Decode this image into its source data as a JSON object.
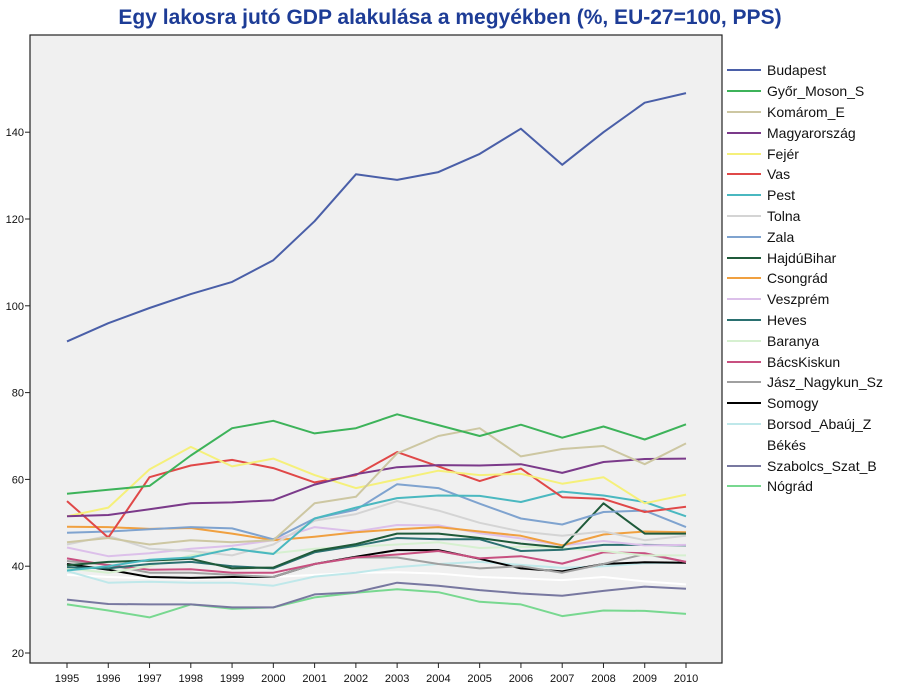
{
  "chart_data": {
    "type": "line",
    "title": "Egy lakosra jutó GDP alakulása a megyékben (%, EU-27=100, PPS)",
    "xlabel": "",
    "ylabel": "",
    "x": [
      1995,
      1996,
      1997,
      1998,
      1999,
      2000,
      2001,
      2002,
      2003,
      2004,
      2005,
      2006,
      2007,
      2008,
      2009,
      2010
    ],
    "ylim": [
      18,
      155
    ],
    "yticks": [
      20,
      40,
      60,
      80,
      100,
      120,
      140
    ],
    "grid": false,
    "legend_position": "right",
    "series": [
      {
        "name": "Budapest",
        "color": "#4a5fa8",
        "values": [
          91.8,
          96,
          99.5,
          102.7,
          105.5,
          110.5,
          119.5,
          130.3,
          129,
          130.8,
          135,
          140.8,
          132.5,
          140,
          146.8,
          149
        ]
      },
      {
        "name": "Győr_Moson_S",
        "color": "#3db35a",
        "values": [
          56.7,
          57.6,
          58.5,
          65.5,
          71.8,
          73.5,
          70.6,
          71.8,
          75,
          72.5,
          70,
          72.6,
          69.6,
          72.2,
          69.2,
          72.7
        ]
      },
      {
        "name": "Komárom_E",
        "color": "#cdc7a2",
        "values": [
          45.5,
          46.5,
          45,
          46,
          45.5,
          46,
          54.5,
          56,
          66,
          70,
          71.8,
          65.3,
          67,
          67.7,
          63.5,
          68.3
        ]
      },
      {
        "name": "Magyarország",
        "color": "#7b3a8a",
        "values": [
          51.5,
          51.8,
          53.1,
          54.5,
          54.7,
          55.2,
          58.8,
          61.2,
          62.8,
          63.3,
          63.2,
          63.5,
          61.5,
          64,
          64.7,
          64.8
        ]
      },
      {
        "name": "Fejér",
        "color": "#f5f07a",
        "values": [
          51.5,
          53.5,
          62.3,
          67.5,
          63,
          64.8,
          61,
          58,
          60,
          62,
          61,
          61.3,
          59,
          60.5,
          54.5,
          56.5
        ]
      },
      {
        "name": "Vas",
        "color": "#e04848",
        "values": [
          55,
          46.6,
          60.5,
          63.2,
          64.5,
          62.6,
          59.3,
          61,
          66.3,
          63,
          59.6,
          62.5,
          55.9,
          55.5,
          52.5,
          53.7
        ]
      },
      {
        "name": "Pest",
        "color": "#4ab8c0",
        "values": [
          39,
          40,
          41.5,
          42,
          44,
          42.8,
          51,
          53.5,
          55.7,
          56.3,
          56.2,
          54.8,
          57.2,
          56.3,
          54.8,
          51.5
        ]
      },
      {
        "name": "Tolna",
        "color": "#d4d4d4",
        "values": [
          45,
          47,
          44,
          43.5,
          42.5,
          45,
          50.5,
          52,
          55,
          52.8,
          50,
          48,
          47,
          48,
          46,
          47
        ]
      },
      {
        "name": "Zala",
        "color": "#7fa3cf",
        "values": [
          47.7,
          48,
          48.5,
          49,
          48.7,
          46.2,
          51,
          53,
          58.9,
          58,
          54.4,
          51,
          49.6,
          52.5,
          52.8,
          49
        ]
      },
      {
        "name": "HajdúBihar",
        "color": "#1f5a3a",
        "values": [
          40.2,
          41,
          41.3,
          41.7,
          39.5,
          39.7,
          43.5,
          45.1,
          47.5,
          47.5,
          46.5,
          45.2,
          44.3,
          54.5,
          47.5,
          47.5
        ]
      },
      {
        "name": "Csongrád",
        "color": "#f0a040",
        "values": [
          49.1,
          49,
          48.6,
          48.8,
          47.5,
          46,
          46.8,
          47.8,
          48.5,
          49,
          48,
          47,
          44.8,
          47.3,
          48,
          47.8
        ]
      },
      {
        "name": "Veszprém",
        "color": "#dcc0ea",
        "values": [
          44.3,
          42.3,
          43,
          44,
          44.7,
          46,
          49,
          48,
          49.5,
          49.4,
          47.6,
          46.4,
          44.8,
          45.8,
          44.8,
          44.9
        ]
      },
      {
        "name": "Heves",
        "color": "#2a7070",
        "values": [
          39.8,
          39.5,
          40.5,
          41,
          40,
          39.5,
          43.2,
          44.7,
          46.5,
          46.2,
          46.2,
          43.5,
          43.8,
          44.9,
          44.9,
          44.8
        ]
      },
      {
        "name": "Baranya",
        "color": "#d6f0d0",
        "values": [
          39.5,
          38.5,
          40,
          42.5,
          44,
          43,
          44,
          44.5,
          45,
          45.5,
          44.2,
          44.5,
          44.2,
          43.5,
          42.5,
          42.5
        ]
      },
      {
        "name": "BácsKiskun",
        "color": "#c85080",
        "values": [
          41.8,
          40.2,
          39.2,
          39.3,
          38.5,
          38.5,
          40.5,
          42,
          42.7,
          43.5,
          41.8,
          42.3,
          40.6,
          43.2,
          43,
          41
        ]
      },
      {
        "name": "Jász_Nagykun_Sz",
        "color": "#a0a0a0",
        "values": [
          41.2,
          40.3,
          38.5,
          38.5,
          38,
          37.5,
          40.5,
          42,
          42,
          40.5,
          39.5,
          40,
          38.5,
          40.5,
          42.8,
          41
        ]
      },
      {
        "name": "Somogy",
        "color": "#000000",
        "values": [
          40.5,
          39.2,
          37.5,
          37.3,
          37.5,
          37.5,
          40.5,
          42.2,
          43.7,
          43.7,
          41.7,
          39.5,
          38.8,
          40.5,
          40.9,
          40.8
        ]
      },
      {
        "name": "Borsod_Abaúj_Z",
        "color": "#bfe8ea",
        "values": [
          38.9,
          36.2,
          36.4,
          36.2,
          36.2,
          35.5,
          37.6,
          38.5,
          39.8,
          40.5,
          41,
          40.3,
          39.6,
          40,
          40.7,
          40.8
        ]
      },
      {
        "name": "Békés",
        "color": "#ffffff",
        "values": [
          38,
          37.5,
          37.2,
          37,
          37.2,
          37.5,
          38,
          38.5,
          38.6,
          38.3,
          37.5,
          37.2,
          36.8,
          37.5,
          36.5,
          35.8
        ]
      },
      {
        "name": "Szabolcs_Szat_B",
        "color": "#7878a0",
        "values": [
          32.3,
          31.3,
          31.2,
          31.2,
          30.5,
          30.5,
          33.5,
          34,
          36.2,
          35.5,
          34.5,
          33.7,
          33.2,
          34.3,
          35.3,
          34.8
        ]
      },
      {
        "name": "Nógrád",
        "color": "#78d890",
        "values": [
          31.2,
          29.8,
          28.2,
          31.2,
          30.2,
          30.5,
          32.8,
          33.9,
          34.7,
          34,
          31.8,
          31.2,
          28.5,
          29.8,
          29.7,
          29
        ]
      }
    ]
  }
}
